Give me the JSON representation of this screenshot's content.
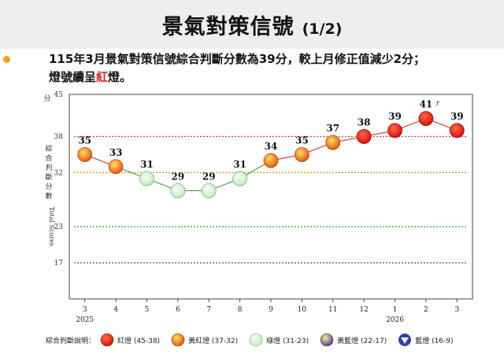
{
  "header": {
    "title": "景氣對策信號",
    "page": "(1/2)"
  },
  "summary": {
    "line1": "115年3月景氣對策信號綜合判斷分數為39分，較上月修正值減少2分；",
    "line2_before": "燈號續呈",
    "line2_red": "紅",
    "line2_after": "燈。"
  },
  "chart_data": {
    "type": "line",
    "ylabel_unit": "分",
    "ylabel_zh": "綜合判斷分數",
    "ylabel_en": "Total Scores",
    "ylim": [
      11,
      45
    ],
    "yticks": [
      17,
      23,
      32,
      38,
      45
    ],
    "threshold_lines": [
      {
        "value": 38,
        "color": "#d04040"
      },
      {
        "value": 32,
        "color": "#c8a000"
      },
      {
        "value": 23,
        "color": "#30a030"
      },
      {
        "value": 17,
        "color": "#3050a0"
      }
    ],
    "categories": [
      "3",
      "4",
      "5",
      "6",
      "7",
      "8",
      "9",
      "10",
      "11",
      "12",
      "1",
      "2",
      "3"
    ],
    "year_labels": [
      {
        "at": 0,
        "text": "2025"
      },
      {
        "at": 10,
        "text": "2026"
      }
    ],
    "values": [
      35,
      33,
      31,
      29,
      29,
      31,
      34,
      35,
      37,
      38,
      39,
      41,
      39
    ],
    "signals": [
      "yellow-red",
      "yellow-red",
      "green",
      "green",
      "green",
      "green",
      "yellow-red",
      "yellow-red",
      "yellow-red",
      "red",
      "red",
      "red",
      "red"
    ],
    "revised_marks": [
      {
        "index": 11,
        "text": "r"
      }
    ],
    "colors": {
      "red": "#e21a1a",
      "yellow-red": "#f39a1e",
      "green": "#d8f5d8",
      "yellow-blue": "#e8d23c",
      "blue": "#2a3fb0"
    },
    "legend": {
      "title": "綜合判斷說明：",
      "items": [
        {
          "signal": "red",
          "label": "紅燈 (45-38)"
        },
        {
          "signal": "yellow-red",
          "label": "黃紅燈 (37-32)"
        },
        {
          "signal": "green",
          "label": "綠燈 (31-23)"
        },
        {
          "signal": "yellow-blue",
          "label": "黃藍燈 (22-17)"
        },
        {
          "signal": "blue",
          "label": "藍燈 (16-9)"
        }
      ]
    }
  }
}
